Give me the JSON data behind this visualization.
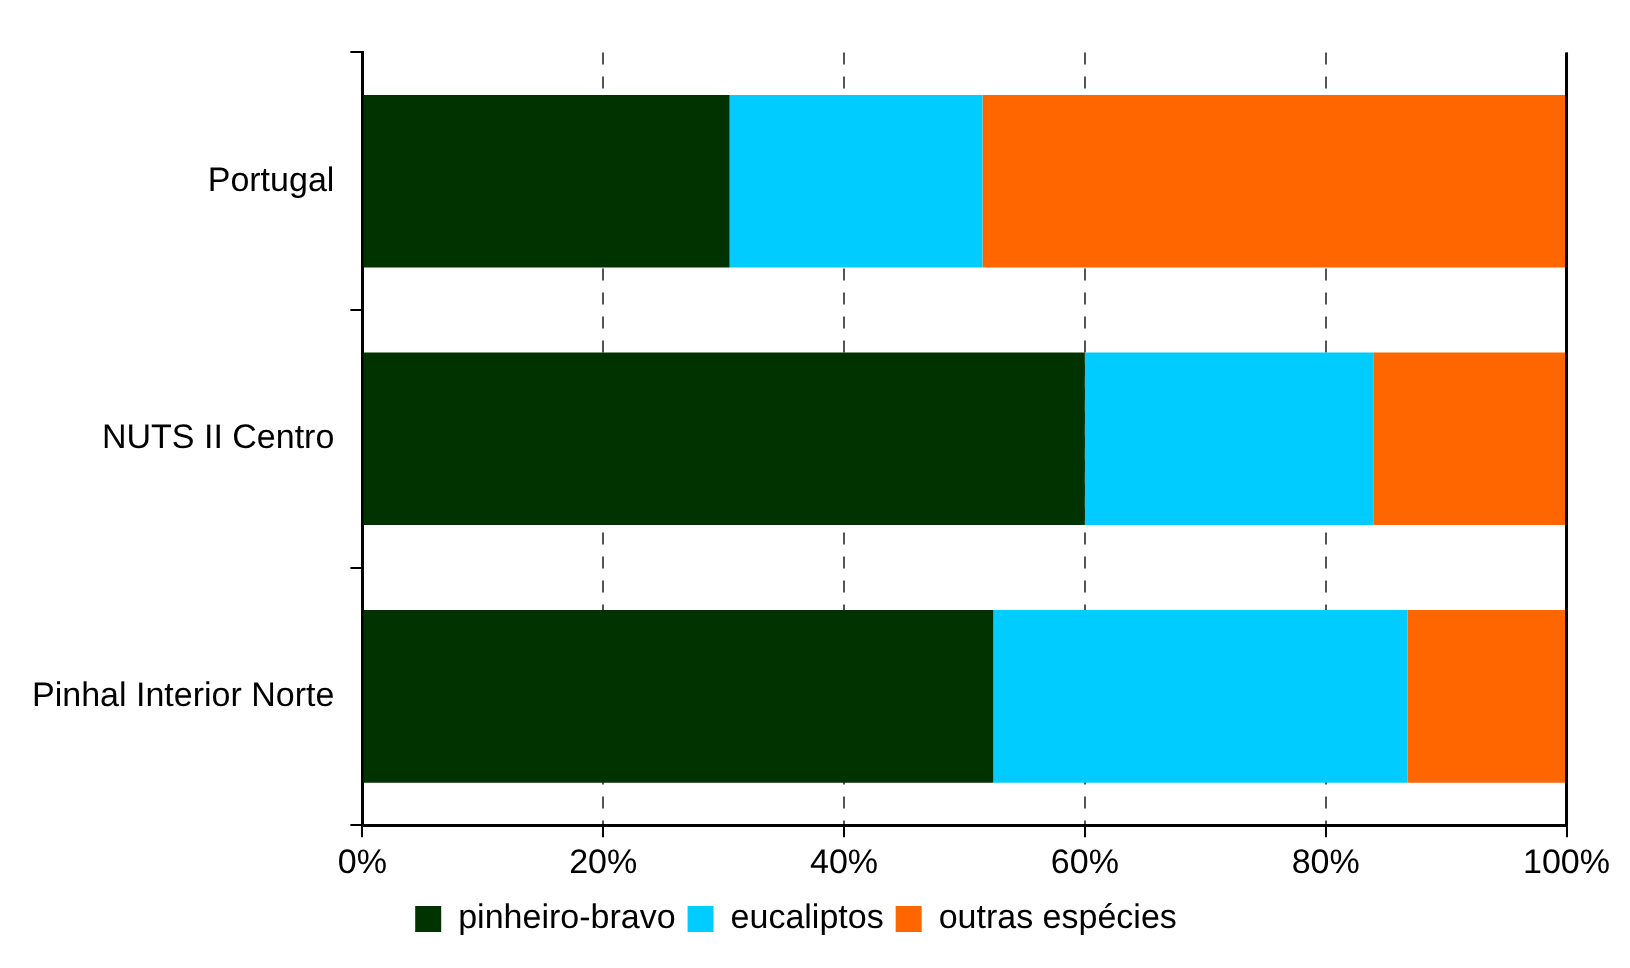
{
  "chart_data": {
    "type": "bar",
    "orientation": "horizontal",
    "stacked": true,
    "categories": [
      "Portugal",
      "NUTS II Centro",
      "Pinhal Interior Norte"
    ],
    "series": [
      {
        "name": "pinheiro-bravo",
        "color": "#003300",
        "values": [
          30.5,
          60.0,
          52.4
        ]
      },
      {
        "name": "eucaliptos",
        "color": "#00ccff",
        "values": [
          21.0,
          24.0,
          34.4
        ]
      },
      {
        "name": "outras espécies",
        "color": "#ff6600",
        "values": [
          48.5,
          16.0,
          13.2
        ]
      }
    ],
    "xlim": [
      0,
      100
    ],
    "xticks": [
      {
        "value": 0,
        "label": "0%"
      },
      {
        "value": 20,
        "label": "20%"
      },
      {
        "value": 40,
        "label": "40%"
      },
      {
        "value": 60,
        "label": "60%"
      },
      {
        "value": 80,
        "label": "80%"
      },
      {
        "value": 100,
        "label": "100%"
      }
    ],
    "grid": "x",
    "legend": "bottom"
  }
}
